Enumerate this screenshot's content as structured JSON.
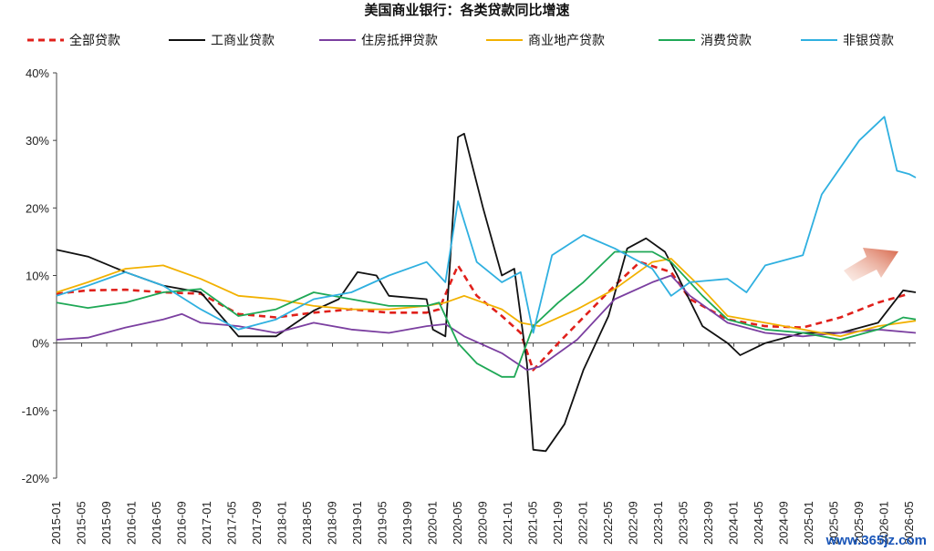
{
  "watermark": "www.365jz.com",
  "chart_data": {
    "type": "line",
    "title": "美国商业银行：各类贷款同比增速",
    "xlabel": "",
    "ylabel": "",
    "ylim": [
      -20,
      40
    ],
    "yticks": [
      "40%",
      "30%",
      "20%",
      "10%",
      "0%",
      "-10%",
      "-20%"
    ],
    "ytick_values": [
      40,
      30,
      20,
      10,
      0,
      -10,
      -20
    ],
    "x_start": "2015-01",
    "x_end": "2026-06",
    "x_tick_labels": [
      "2015-01",
      "2015-05",
      "2015-09",
      "2016-01",
      "2016-05",
      "2016-09",
      "2017-01",
      "2017-05",
      "2017-09",
      "2018-01",
      "2018-05",
      "2018-09",
      "2019-01",
      "2019-05",
      "2019-09",
      "2020-01",
      "2020-05",
      "2020-09",
      "2021-01",
      "2021-05",
      "2021-09",
      "2022-01",
      "2022-05",
      "2022-09",
      "2023-01",
      "2023-05",
      "2023-09",
      "2024-01",
      "2024-05",
      "2024-09",
      "2025-01",
      "2025-05",
      "2025-09",
      "2026-01",
      "2026-05"
    ],
    "grid": false,
    "legend_position": "top",
    "has_arrow": true,
    "series": [
      {
        "name": "全部贷款",
        "color": "#e0201b",
        "dashed": true,
        "points": [
          [
            "2015-01",
            7.3
          ],
          [
            "2015-06",
            7.8
          ],
          [
            "2015-12",
            7.9
          ],
          [
            "2016-06",
            7.5
          ],
          [
            "2016-12",
            7.3
          ],
          [
            "2017-06",
            4.3
          ],
          [
            "2017-12",
            3.8
          ],
          [
            "2018-06",
            4.5
          ],
          [
            "2018-12",
            5.0
          ],
          [
            "2019-06",
            4.5
          ],
          [
            "2019-12",
            4.5
          ],
          [
            "2020-02",
            5.0
          ],
          [
            "2020-05",
            11.5
          ],
          [
            "2020-08",
            7.0
          ],
          [
            "2020-12",
            4.0
          ],
          [
            "2021-03",
            1.5
          ],
          [
            "2021-05",
            -4.0
          ],
          [
            "2021-09",
            0.0
          ],
          [
            "2022-01",
            3.8
          ],
          [
            "2022-06",
            8.5
          ],
          [
            "2022-10",
            12.0
          ],
          [
            "2023-03",
            10.5
          ],
          [
            "2023-06",
            6.5
          ],
          [
            "2023-12",
            3.5
          ],
          [
            "2024-06",
            2.5
          ],
          [
            "2024-12",
            2.3
          ],
          [
            "2025-06",
            3.8
          ],
          [
            "2025-12",
            6.0
          ],
          [
            "2026-05",
            7.3
          ]
        ]
      },
      {
        "name": "工商业贷款",
        "color": "#111111",
        "dashed": false,
        "points": [
          [
            "2015-01",
            13.8
          ],
          [
            "2015-06",
            12.8
          ],
          [
            "2015-12",
            10.5
          ],
          [
            "2016-06",
            8.5
          ],
          [
            "2016-12",
            7.5
          ],
          [
            "2017-06",
            1.0
          ],
          [
            "2017-12",
            1.0
          ],
          [
            "2018-06",
            4.8
          ],
          [
            "2018-10",
            6.5
          ],
          [
            "2019-01",
            10.5
          ],
          [
            "2019-04",
            10.0
          ],
          [
            "2019-06",
            7.0
          ],
          [
            "2019-12",
            6.5
          ],
          [
            "2020-01",
            2.0
          ],
          [
            "2020-03",
            1.0
          ],
          [
            "2020-05",
            30.5
          ],
          [
            "2020-06",
            31.0
          ],
          [
            "2020-09",
            20.0
          ],
          [
            "2020-12",
            10.0
          ],
          [
            "2021-02",
            11.0
          ],
          [
            "2021-04",
            -3.0
          ],
          [
            "2021-05",
            -15.8
          ],
          [
            "2021-07",
            -16.0
          ],
          [
            "2021-10",
            -12.0
          ],
          [
            "2022-01",
            -4.0
          ],
          [
            "2022-05",
            4.0
          ],
          [
            "2022-08",
            14.0
          ],
          [
            "2022-11",
            15.5
          ],
          [
            "2023-02",
            13.5
          ],
          [
            "2023-04",
            10.0
          ],
          [
            "2023-08",
            2.5
          ],
          [
            "2023-12",
            0.0
          ],
          [
            "2024-02",
            -1.8
          ],
          [
            "2024-06",
            0.0
          ],
          [
            "2024-12",
            1.5
          ],
          [
            "2025-06",
            1.5
          ],
          [
            "2025-12",
            3.0
          ],
          [
            "2026-04",
            7.8
          ],
          [
            "2026-06",
            7.5
          ]
        ]
      },
      {
        "name": "住房抵押贷款",
        "color": "#7b3fa0",
        "dashed": false,
        "points": [
          [
            "2015-01",
            0.5
          ],
          [
            "2015-06",
            0.8
          ],
          [
            "2015-12",
            2.3
          ],
          [
            "2016-06",
            3.5
          ],
          [
            "2016-09",
            4.3
          ],
          [
            "2016-12",
            3.0
          ],
          [
            "2017-06",
            2.5
          ],
          [
            "2017-12",
            1.5
          ],
          [
            "2018-06",
            3.0
          ],
          [
            "2018-12",
            2.0
          ],
          [
            "2019-06",
            1.5
          ],
          [
            "2019-12",
            2.5
          ],
          [
            "2020-03",
            2.8
          ],
          [
            "2020-06",
            1.0
          ],
          [
            "2020-12",
            -1.5
          ],
          [
            "2021-04",
            -4.0
          ],
          [
            "2021-06",
            -3.5
          ],
          [
            "2021-12",
            0.5
          ],
          [
            "2022-06",
            6.5
          ],
          [
            "2022-12",
            9.0
          ],
          [
            "2023-03",
            10.0
          ],
          [
            "2023-06",
            7.0
          ],
          [
            "2023-12",
            3.0
          ],
          [
            "2024-06",
            1.5
          ],
          [
            "2024-12",
            1.0
          ],
          [
            "2025-06",
            1.5
          ],
          [
            "2025-12",
            2.0
          ],
          [
            "2026-06",
            1.5
          ]
        ]
      },
      {
        "name": "商业地产贷款",
        "color": "#f2b100",
        "dashed": false,
        "points": [
          [
            "2015-01",
            7.5
          ],
          [
            "2015-06",
            9.0
          ],
          [
            "2015-12",
            11.0
          ],
          [
            "2016-06",
            11.5
          ],
          [
            "2016-12",
            9.5
          ],
          [
            "2017-06",
            7.0
          ],
          [
            "2017-12",
            6.5
          ],
          [
            "2018-06",
            5.5
          ],
          [
            "2018-12",
            5.0
          ],
          [
            "2019-06",
            5.0
          ],
          [
            "2019-12",
            5.5
          ],
          [
            "2020-03",
            6.0
          ],
          [
            "2020-06",
            7.0
          ],
          [
            "2020-12",
            5.0
          ],
          [
            "2021-03",
            3.0
          ],
          [
            "2021-06",
            2.5
          ],
          [
            "2021-12",
            5.0
          ],
          [
            "2022-06",
            8.0
          ],
          [
            "2022-12",
            12.0
          ],
          [
            "2023-03",
            12.5
          ],
          [
            "2023-08",
            8.0
          ],
          [
            "2023-12",
            4.0
          ],
          [
            "2024-06",
            3.0
          ],
          [
            "2024-12",
            2.0
          ],
          [
            "2025-06",
            1.0
          ],
          [
            "2025-12",
            2.5
          ],
          [
            "2026-06",
            3.3
          ]
        ]
      },
      {
        "name": "消费贷款",
        "color": "#1fa856",
        "dashed": false,
        "points": [
          [
            "2015-01",
            6.0
          ],
          [
            "2015-06",
            5.2
          ],
          [
            "2015-12",
            6.0
          ],
          [
            "2016-06",
            7.5
          ],
          [
            "2016-12",
            8.0
          ],
          [
            "2017-06",
            4.0
          ],
          [
            "2017-12",
            5.0
          ],
          [
            "2018-06",
            7.5
          ],
          [
            "2018-12",
            6.5
          ],
          [
            "2019-06",
            5.5
          ],
          [
            "2019-12",
            5.5
          ],
          [
            "2020-02",
            6.0
          ],
          [
            "2020-05",
            0.0
          ],
          [
            "2020-08",
            -3.0
          ],
          [
            "2020-12",
            -5.0
          ],
          [
            "2021-02",
            -5.0
          ],
          [
            "2021-05",
            2.5
          ],
          [
            "2021-09",
            6.0
          ],
          [
            "2022-01",
            9.0
          ],
          [
            "2022-06",
            13.5
          ],
          [
            "2022-12",
            13.5
          ],
          [
            "2023-03",
            12.0
          ],
          [
            "2023-08",
            7.0
          ],
          [
            "2023-12",
            3.5
          ],
          [
            "2024-06",
            2.0
          ],
          [
            "2024-12",
            1.5
          ],
          [
            "2025-06",
            0.5
          ],
          [
            "2025-12",
            2.0
          ],
          [
            "2026-04",
            3.8
          ],
          [
            "2026-06",
            3.5
          ]
        ]
      },
      {
        "name": "非银贷款",
        "color": "#2fb0e0",
        "dashed": false,
        "points": [
          [
            "2015-01",
            7.0
          ],
          [
            "2015-06",
            8.5
          ],
          [
            "2015-12",
            10.5
          ],
          [
            "2016-06",
            8.5
          ],
          [
            "2016-12",
            5.0
          ],
          [
            "2017-06",
            2.0
          ],
          [
            "2017-12",
            3.5
          ],
          [
            "2018-06",
            6.5
          ],
          [
            "2018-12",
            7.5
          ],
          [
            "2019-06",
            10.0
          ],
          [
            "2019-12",
            12.0
          ],
          [
            "2020-03",
            9.0
          ],
          [
            "2020-05",
            21.0
          ],
          [
            "2020-08",
            12.0
          ],
          [
            "2020-12",
            9.0
          ],
          [
            "2021-03",
            10.5
          ],
          [
            "2021-05",
            1.5
          ],
          [
            "2021-08",
            13.0
          ],
          [
            "2022-01",
            16.0
          ],
          [
            "2022-06",
            14.0
          ],
          [
            "2022-12",
            11.0
          ],
          [
            "2023-03",
            7.0
          ],
          [
            "2023-06",
            9.0
          ],
          [
            "2023-12",
            9.5
          ],
          [
            "2024-03",
            7.5
          ],
          [
            "2024-06",
            11.5
          ],
          [
            "2024-12",
            13.0
          ],
          [
            "2025-03",
            22.0
          ],
          [
            "2025-06",
            26.0
          ],
          [
            "2025-09",
            30.0
          ],
          [
            "2026-01",
            33.5
          ],
          [
            "2026-03",
            25.5
          ],
          [
            "2026-05",
            25.0
          ],
          [
            "2026-06",
            24.5
          ]
        ]
      }
    ]
  }
}
